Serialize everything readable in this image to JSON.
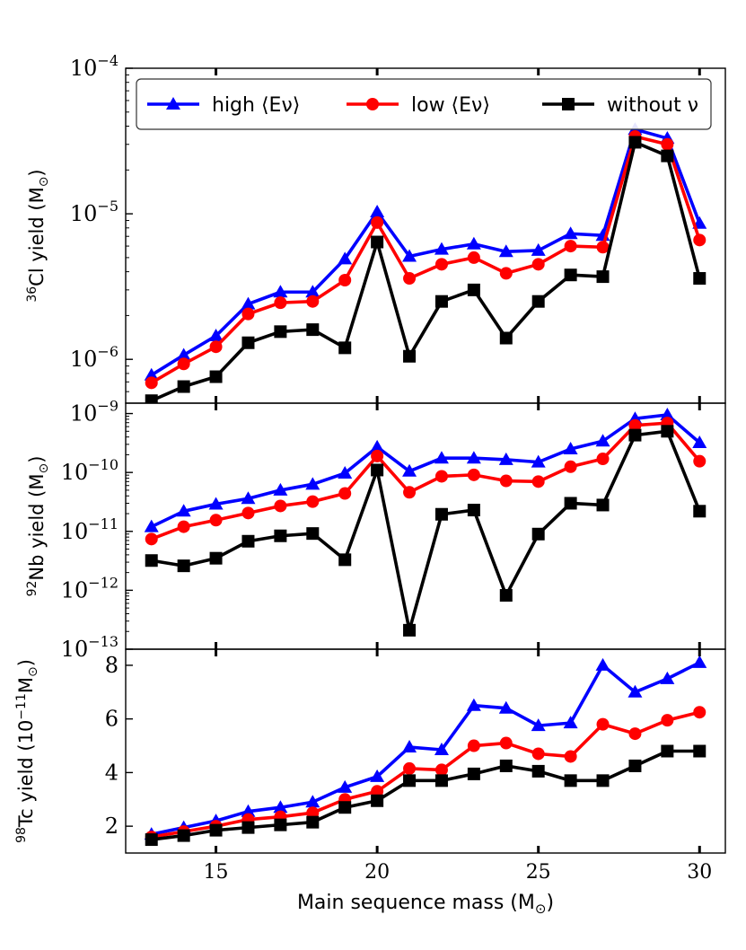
{
  "figure": {
    "xlabel": "Main sequence mass (M",
    "xlabel_sub": "⊙",
    "xlabel_end": ")"
  },
  "legend": {
    "placement": "top",
    "entries": [
      {
        "label": "high ⟨Eν⟩",
        "color": "#0000ff",
        "marker": "triangle"
      },
      {
        "label": "low ⟨Eν⟩",
        "color": "#ff0000",
        "marker": "circle"
      },
      {
        "label": "without ν",
        "color": "#000000",
        "marker": "square"
      }
    ]
  },
  "chart_data": [
    {
      "type": "line",
      "panel": "top",
      "ylabel_sup": "36",
      "ylabel": "Cl yield (M",
      "ylabel_sub": "⊙",
      "ylabel_end": ")",
      "yscale": "log",
      "ylim": [
        5e-07,
        0.0001
      ],
      "xlim": [
        12.2,
        30.8
      ],
      "x": [
        13,
        14,
        15,
        16,
        17,
        18,
        19,
        20,
        21,
        22,
        23,
        24,
        25,
        26,
        27,
        28,
        29,
        30
      ],
      "xticks": [
        15,
        20,
        25,
        30
      ],
      "yticks": [
        {
          "value": 1e-06,
          "base": "10",
          "exp": "−6"
        },
        {
          "value": 1e-05,
          "base": "10",
          "exp": "−5"
        },
        {
          "value": 0.0001,
          "base": "10",
          "exp": "−4"
        }
      ],
      "series": [
        {
          "name": "high ⟨Eν⟩",
          "color": "#0000ff",
          "marker": "triangle",
          "values": [
            7.8e-07,
            1.07e-06,
            1.45e-06,
            2.4e-06,
            2.9e-06,
            2.9e-06,
            4.9e-06,
            1.03e-05,
            5.1e-06,
            5.7e-06,
            6.2e-06,
            5.5e-06,
            5.6e-06,
            7.3e-06,
            7.1e-06,
            3.8e-05,
            3.3e-05,
            8.6e-06
          ]
        },
        {
          "name": "low ⟨Eν⟩",
          "color": "#ff0000",
          "marker": "circle",
          "values": [
            6.9e-07,
            9.3e-07,
            1.22e-06,
            2.05e-06,
            2.45e-06,
            2.5e-06,
            3.5e-06,
            8.7e-06,
            3.6e-06,
            4.5e-06,
            5e-06,
            3.9e-06,
            4.5e-06,
            6e-06,
            5.9e-06,
            3.4e-05,
            3e-05,
            6.6e-06
          ]
        },
        {
          "name": "without ν",
          "color": "#000000",
          "marker": "square",
          "values": [
            5.2e-07,
            6.5e-07,
            7.6e-07,
            1.3e-06,
            1.55e-06,
            1.6e-06,
            1.2e-06,
            6.4e-06,
            1.05e-06,
            2.5e-06,
            3e-06,
            1.4e-06,
            2.5e-06,
            3.8e-06,
            3.7e-06,
            3.1e-05,
            2.5e-05,
            3.6e-06
          ]
        }
      ]
    },
    {
      "type": "line",
      "panel": "middle",
      "ylabel_sup": "92",
      "ylabel": "Nb yield (M",
      "ylabel_sub": "⊙",
      "ylabel_end": ")",
      "yscale": "log",
      "ylim": [
        1e-13,
        1.5e-09
      ],
      "xlim": [
        12.2,
        30.8
      ],
      "x": [
        13,
        14,
        15,
        16,
        17,
        18,
        19,
        20,
        21,
        22,
        23,
        24,
        25,
        26,
        27,
        28,
        29,
        30
      ],
      "xticks": [
        15,
        20,
        25,
        30
      ],
      "yticks": [
        {
          "value": 1e-13,
          "base": "10",
          "exp": "−13"
        },
        {
          "value": 1e-12,
          "base": "10",
          "exp": "−12"
        },
        {
          "value": 1e-11,
          "base": "10",
          "exp": "−11"
        },
        {
          "value": 1e-10,
          "base": "10",
          "exp": "−10"
        },
        {
          "value": 1e-09,
          "base": "10",
          "exp": "−9"
        }
      ],
      "series": [
        {
          "name": "high ⟨Eν⟩",
          "color": "#0000ff",
          "marker": "triangle",
          "values": [
            1.2e-11,
            2.2e-11,
            2.9e-11,
            3.6e-11,
            5e-11,
            6.3e-11,
            9.7e-11,
            2.7e-10,
            1.05e-10,
            1.75e-10,
            1.75e-10,
            1.65e-10,
            1.5e-10,
            2.5e-10,
            3.4e-10,
            8.2e-10,
            9.5e-10,
            3.2e-10
          ]
        },
        {
          "name": "low ⟨Eν⟩",
          "color": "#ff0000",
          "marker": "circle",
          "values": [
            7.4e-12,
            1.2e-11,
            1.55e-11,
            2.05e-11,
            2.7e-11,
            3.2e-11,
            4.4e-11,
            1.9e-10,
            4.6e-11,
            8.6e-11,
            9.1e-11,
            7.2e-11,
            7e-11,
            1.25e-10,
            1.7e-10,
            6.3e-10,
            6.9e-10,
            1.55e-10
          ]
        },
        {
          "name": "without ν",
          "color": "#000000",
          "marker": "square",
          "values": [
            3.2e-12,
            2.6e-12,
            3.5e-12,
            6.8e-12,
            8.4e-12,
            9.2e-12,
            3.3e-12,
            1.1e-10,
            2.1e-13,
            1.95e-11,
            2.3e-11,
            8.2e-13,
            9e-12,
            3e-11,
            2.8e-11,
            4.3e-10,
            5e-10,
            2.2e-11
          ]
        }
      ]
    },
    {
      "type": "line",
      "panel": "bottom",
      "ylabel_sup": "98",
      "ylabel": "Tc yield (10",
      "ylabel_exp": "−11",
      "ylabel_unit": "M",
      "ylabel_sub": "⊙",
      "ylabel_end": ")",
      "yscale": "linear",
      "ylim": [
        1.0,
        8.6
      ],
      "xlim": [
        12.2,
        30.8
      ],
      "x": [
        13,
        14,
        15,
        16,
        17,
        18,
        19,
        20,
        21,
        22,
        23,
        24,
        25,
        26,
        27,
        28,
        29,
        30
      ],
      "xticks": [
        15,
        20,
        25,
        30
      ],
      "yticks": [
        {
          "value": 2,
          "label": "2"
        },
        {
          "value": 4,
          "label": "4"
        },
        {
          "value": 6,
          "label": "6"
        },
        {
          "value": 8,
          "label": "8"
        }
      ],
      "series": [
        {
          "name": "high ⟨Eν⟩",
          "color": "#0000ff",
          "marker": "triangle",
          "values": [
            1.7,
            1.95,
            2.2,
            2.55,
            2.7,
            2.9,
            3.45,
            3.85,
            4.95,
            4.85,
            6.5,
            6.4,
            5.75,
            5.85,
            8.0,
            7.0,
            7.5,
            8.1
          ]
        },
        {
          "name": "low ⟨Eν⟩",
          "color": "#ff0000",
          "marker": "circle",
          "values": [
            1.6,
            1.8,
            2.0,
            2.25,
            2.35,
            2.5,
            3.0,
            3.3,
            4.15,
            4.1,
            5.0,
            5.1,
            4.7,
            4.6,
            5.8,
            5.45,
            5.95,
            6.25
          ]
        },
        {
          "name": "without ν",
          "color": "#000000",
          "marker": "square",
          "values": [
            1.5,
            1.65,
            1.85,
            1.95,
            2.05,
            2.15,
            2.7,
            2.95,
            3.7,
            3.7,
            3.95,
            4.25,
            4.05,
            3.7,
            3.7,
            4.25,
            4.8,
            4.8
          ]
        }
      ]
    }
  ]
}
